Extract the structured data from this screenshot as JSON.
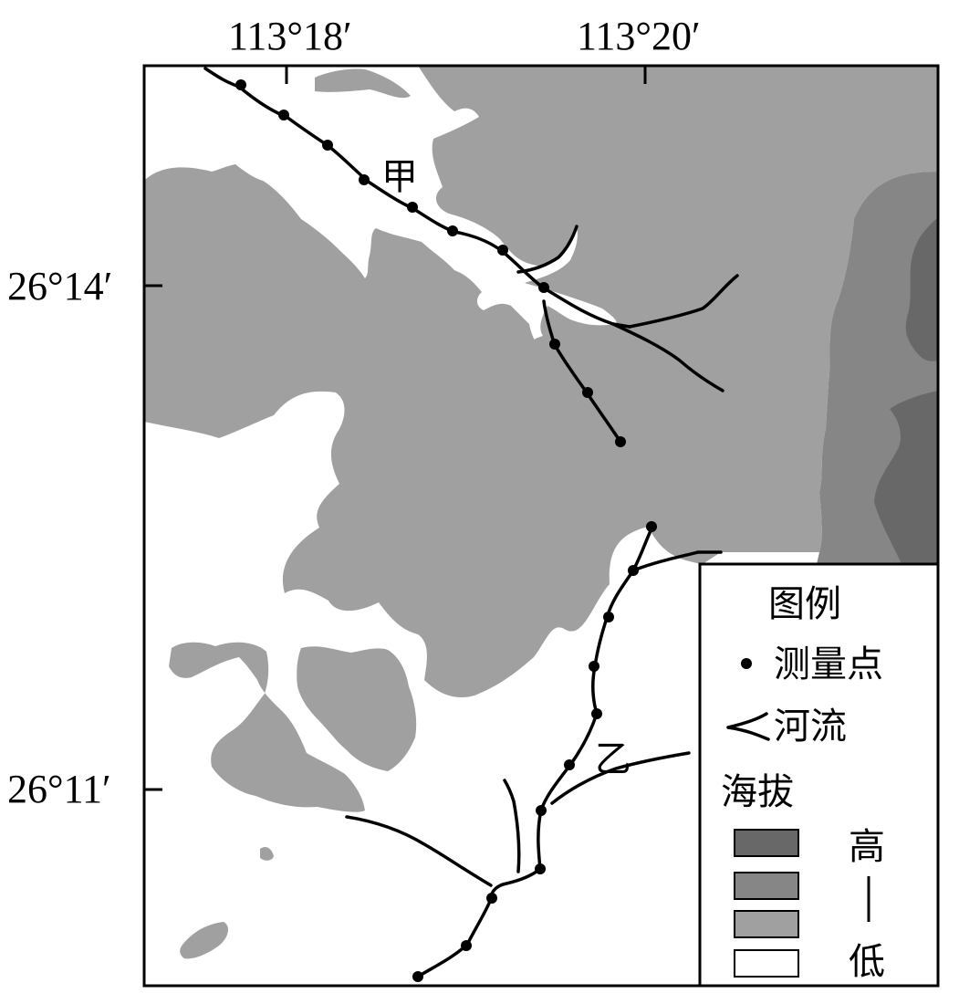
{
  "top_axis": {
    "labels": [
      "113°18′",
      "113°20′"
    ]
  },
  "left_axis": {
    "labels": [
      "26°14′",
      "26°11′"
    ]
  },
  "place_labels": {
    "jia": "甲",
    "yi": "乙"
  },
  "legend": {
    "title": "图例",
    "point_label": "测量点",
    "river_label": "河流",
    "elevation_title": "海拔",
    "high_label": "高",
    "low_label": "低",
    "elevation_colors": [
      "#686868",
      "#868686",
      "#a0a0a0",
      "#ffffff"
    ]
  },
  "colors": {
    "border": "#000000",
    "land_mid": "#a0a0a0",
    "land_high": "#868686",
    "land_highest": "#686868",
    "lowland": "#ffffff"
  }
}
